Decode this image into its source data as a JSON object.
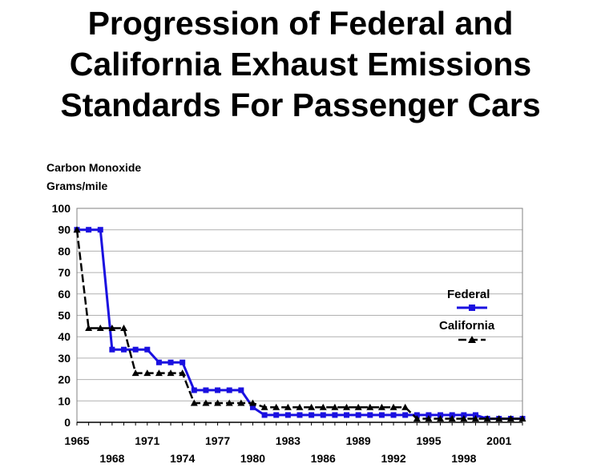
{
  "chart_data": {
    "type": "line",
    "title_lines": [
      "Progression of Federal and",
      "California Exhaust Emissions",
      "Standards For Passenger Cars"
    ],
    "ylabel_lines": [
      "Carbon Monoxide",
      "Grams/mile"
    ],
    "ylim": [
      0,
      100
    ],
    "y_ticks": [
      "0",
      "10",
      "20",
      "30",
      "40",
      "50",
      "60",
      "70",
      "80",
      "90",
      "100"
    ],
    "xlim": [
      1965,
      2003
    ],
    "x_ticks_upper": [
      "1965",
      "1971",
      "1977",
      "1983",
      "1989",
      "1995",
      "2001"
    ],
    "x_ticks_lower": [
      "1968",
      "1974",
      "1980",
      "1986",
      "1992",
      "1998"
    ],
    "grid": true,
    "legend_position": "right",
    "series": [
      {
        "name": "Federal",
        "color": "#1a10e0",
        "marker": "square",
        "x": [
          1965,
          1966,
          1967,
          1968,
          1969,
          1970,
          1971,
          1972,
          1973,
          1974,
          1975,
          1976,
          1977,
          1978,
          1979,
          1980,
          1981,
          1982,
          1983,
          1984,
          1985,
          1986,
          1987,
          1988,
          1989,
          1990,
          1991,
          1992,
          1993,
          1994,
          1995,
          1996,
          1997,
          1998,
          1999,
          2000,
          2001,
          2002,
          2003
        ],
        "y": [
          90,
          90,
          90,
          34,
          34,
          34,
          34,
          28,
          28,
          28,
          15,
          15,
          15,
          15,
          15,
          7,
          3.4,
          3.4,
          3.4,
          3.4,
          3.4,
          3.4,
          3.4,
          3.4,
          3.4,
          3.4,
          3.4,
          3.4,
          3.4,
          3.4,
          3.4,
          3.4,
          3.4,
          3.4,
          3.4,
          1.7,
          1.7,
          1.7,
          1.7
        ]
      },
      {
        "name": "California",
        "color": "#000000",
        "marker": "triangle",
        "x": [
          1965,
          1966,
          1967,
          1968,
          1969,
          1970,
          1971,
          1972,
          1973,
          1974,
          1975,
          1976,
          1977,
          1978,
          1979,
          1980,
          1981,
          1982,
          1983,
          1984,
          1985,
          1986,
          1987,
          1988,
          1989,
          1990,
          1991,
          1992,
          1993,
          1994,
          1995,
          1996,
          1997,
          1998,
          1999,
          2000,
          2001,
          2002,
          2003
        ],
        "y": [
          90,
          44,
          44,
          44,
          44,
          23,
          23,
          23,
          23,
          23,
          9,
          9,
          9,
          9,
          9,
          9,
          7,
          7,
          7,
          7,
          7,
          7,
          7,
          7,
          7,
          7,
          7,
          7,
          7,
          1.7,
          1.7,
          1.7,
          1.7,
          1.7,
          1.7,
          1.7,
          1.7,
          1.7,
          1.7
        ]
      }
    ]
  }
}
